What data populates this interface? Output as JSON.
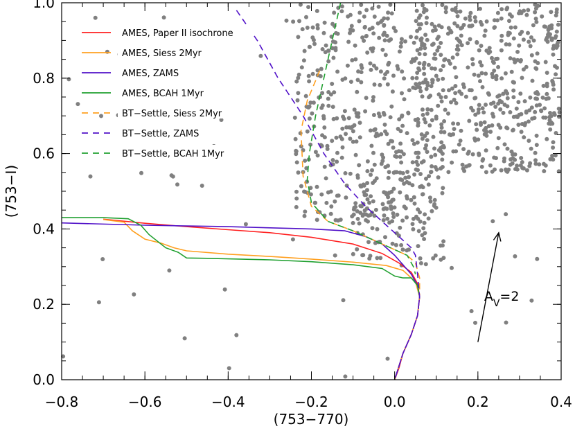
{
  "chart_data": {
    "type": "scatter",
    "title": "",
    "xlabel": "(753−770)",
    "ylabel": "(753−I)",
    "xlim": [
      -0.8,
      0.4
    ],
    "ylim": [
      0.0,
      1.0
    ],
    "xticks": [
      -0.8,
      -0.6,
      -0.4,
      -0.2,
      0.0,
      0.2,
      0.4
    ],
    "xtick_labels": [
      "−0.8",
      "−0.6",
      "−0.4",
      "−0.2",
      "0.0",
      "0.2",
      "0.4"
    ],
    "yticks": [
      0.0,
      0.2,
      0.4,
      0.6,
      0.8,
      1.0
    ],
    "ytick_labels": [
      "0.0",
      "0.2",
      "0.4",
      "0.6",
      "0.8",
      "1.0"
    ],
    "grid": false,
    "legend_position": "top-left",
    "scatter_color": "#808080",
    "scatter_regions": [
      {
        "x_range": [
          -0.24,
          0.08
        ],
        "y_range": [
          0.42,
          1.0
        ],
        "count": 420
      },
      {
        "x_range": [
          0.05,
          0.4
        ],
        "y_range": [
          0.55,
          1.0
        ],
        "count": 520
      },
      {
        "x_range": [
          -0.1,
          0.12
        ],
        "y_range": [
          0.3,
          0.55
        ],
        "count": 110
      },
      {
        "x_range": [
          -0.8,
          0.4
        ],
        "y_range": [
          0.0,
          1.0
        ],
        "count": 70
      }
    ],
    "series": [
      {
        "name": "AMES, Paper II isochrone",
        "color": "#ff2020",
        "style": "solid",
        "points": [
          [
            -0.7,
            0.426
          ],
          [
            -0.6,
            0.415
          ],
          [
            -0.5,
            0.406
          ],
          [
            -0.4,
            0.398
          ],
          [
            -0.3,
            0.39
          ],
          [
            -0.2,
            0.378
          ],
          [
            -0.1,
            0.36
          ],
          [
            -0.03,
            0.335
          ],
          [
            0.01,
            0.31
          ],
          [
            0.04,
            0.285
          ],
          [
            0.055,
            0.255
          ],
          [
            0.06,
            0.22
          ],
          [
            0.055,
            0.17
          ],
          [
            0.04,
            0.12
          ],
          [
            0.02,
            0.07
          ],
          [
            0.01,
            0.03
          ],
          [
            0.0,
            0.0
          ]
        ]
      },
      {
        "name": "AMES, Siess 2Myr",
        "color": "#ffa020",
        "style": "solid",
        "points": [
          [
            -0.7,
            0.425
          ],
          [
            -0.65,
            0.418
          ],
          [
            -0.63,
            0.395
          ],
          [
            -0.6,
            0.373
          ],
          [
            -0.56,
            0.362
          ],
          [
            -0.53,
            0.35
          ],
          [
            -0.5,
            0.342
          ],
          [
            -0.4,
            0.333
          ],
          [
            -0.3,
            0.327
          ],
          [
            -0.2,
            0.32
          ],
          [
            -0.1,
            0.312
          ],
          [
            -0.02,
            0.303
          ],
          [
            0.02,
            0.29
          ],
          [
            0.05,
            0.26
          ],
          [
            0.06,
            0.22
          ],
          [
            0.055,
            0.17
          ],
          [
            0.04,
            0.12
          ],
          [
            0.02,
            0.07
          ],
          [
            0.0,
            0.0
          ]
        ]
      },
      {
        "name": "AMES, ZAMS",
        "color": "#5010c8",
        "style": "solid",
        "points": [
          [
            -0.8,
            0.416
          ],
          [
            -0.6,
            0.41
          ],
          [
            -0.4,
            0.406
          ],
          [
            -0.2,
            0.4
          ],
          [
            -0.12,
            0.395
          ],
          [
            -0.07,
            0.38
          ],
          [
            -0.03,
            0.36
          ],
          [
            0.0,
            0.33
          ],
          [
            0.02,
            0.305
          ],
          [
            0.04,
            0.28
          ],
          [
            0.055,
            0.25
          ],
          [
            0.06,
            0.22
          ],
          [
            0.055,
            0.17
          ],
          [
            0.04,
            0.12
          ],
          [
            0.02,
            0.07
          ],
          [
            0.0,
            0.0
          ]
        ]
      },
      {
        "name": "AMES, BCAH 1Myr",
        "color": "#20a030",
        "style": "solid",
        "points": [
          [
            -0.8,
            0.43
          ],
          [
            -0.7,
            0.43
          ],
          [
            -0.64,
            0.427
          ],
          [
            -0.61,
            0.41
          ],
          [
            -0.59,
            0.385
          ],
          [
            -0.55,
            0.35
          ],
          [
            -0.52,
            0.338
          ],
          [
            -0.5,
            0.323
          ],
          [
            -0.45,
            0.322
          ],
          [
            -0.3,
            0.318
          ],
          [
            -0.2,
            0.313
          ],
          [
            -0.1,
            0.305
          ],
          [
            -0.03,
            0.295
          ],
          [
            0.0,
            0.275
          ],
          [
            0.02,
            0.27
          ],
          [
            0.04,
            0.27
          ],
          [
            0.055,
            0.25
          ],
          [
            0.06,
            0.22
          ]
        ]
      },
      {
        "name": "BT−Settle, Siess 2Myr",
        "color": "#ffa020",
        "style": "dashed",
        "points": [
          [
            -0.18,
            0.82
          ],
          [
            -0.21,
            0.74
          ],
          [
            -0.225,
            0.66
          ],
          [
            -0.22,
            0.54
          ],
          [
            -0.2,
            0.46
          ],
          [
            -0.16,
            0.42
          ],
          [
            -0.1,
            0.395
          ],
          [
            -0.05,
            0.37
          ],
          [
            0.0,
            0.345
          ],
          [
            0.03,
            0.33
          ],
          [
            0.05,
            0.31
          ],
          [
            0.06,
            0.27
          ],
          [
            0.06,
            0.22
          ],
          [
            0.055,
            0.17
          ],
          [
            0.04,
            0.12
          ],
          [
            0.02,
            0.07
          ],
          [
            0.0,
            0.0
          ]
        ]
      },
      {
        "name": "BT−Settle, ZAMS",
        "color": "#5010c8",
        "style": "dashed",
        "points": [
          [
            -0.38,
            0.98
          ],
          [
            -0.33,
            0.9
          ],
          [
            -0.28,
            0.8
          ],
          [
            -0.22,
            0.7
          ],
          [
            -0.17,
            0.6
          ],
          [
            -0.12,
            0.52
          ],
          [
            -0.07,
            0.46
          ],
          [
            -0.02,
            0.41
          ],
          [
            0.02,
            0.37
          ],
          [
            0.04,
            0.35
          ],
          [
            0.05,
            0.33
          ],
          [
            0.055,
            0.28
          ],
          [
            0.06,
            0.22
          ],
          [
            0.055,
            0.17
          ],
          [
            0.04,
            0.12
          ],
          [
            0.02,
            0.07
          ],
          [
            0.0,
            0.0
          ]
        ]
      },
      {
        "name": "BT−Settle, BCAH 1Myr",
        "color": "#20a030",
        "style": "dashed",
        "points": [
          [
            -0.13,
            1.0
          ],
          [
            -0.15,
            0.9
          ],
          [
            -0.17,
            0.8
          ],
          [
            -0.19,
            0.7
          ],
          [
            -0.205,
            0.6
          ],
          [
            -0.21,
            0.53
          ],
          [
            -0.2,
            0.47
          ],
          [
            -0.16,
            0.42
          ],
          [
            -0.1,
            0.395
          ],
          [
            -0.05,
            0.37
          ],
          [
            0.0,
            0.345
          ],
          [
            0.03,
            0.33
          ],
          [
            0.045,
            0.3
          ],
          [
            0.05,
            0.28
          ]
        ]
      }
    ],
    "annotations": [
      {
        "text": "A",
        "subscript": "V",
        "suffix": "=2",
        "x": 0.215,
        "y": 0.21
      },
      {
        "type": "arrow",
        "from": [
          0.2,
          0.1
        ],
        "to": [
          0.25,
          0.39
        ]
      }
    ]
  }
}
